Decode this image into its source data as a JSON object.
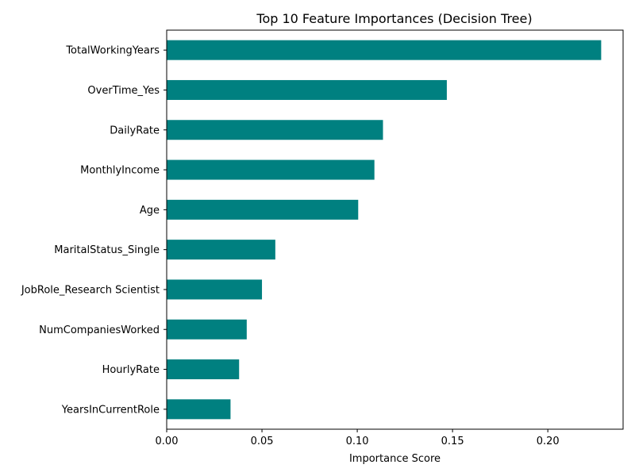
{
  "chart_data": {
    "type": "bar",
    "orientation": "horizontal",
    "title": "Top 10 Feature Importances (Decision Tree)",
    "xlabel": "Importance Score",
    "ylabel": "",
    "xlim": [
      0,
      0.2395
    ],
    "xticks": [
      0.0,
      0.05,
      0.1,
      0.15,
      0.2
    ],
    "xtick_labels": [
      "0.00",
      "0.05",
      "0.10",
      "0.15",
      "0.20"
    ],
    "grid": false,
    "bar_color": "#008080",
    "categories": [
      "TotalWorkingYears",
      "OverTime_Yes",
      "DailyRate",
      "MonthlyIncome",
      "Age",
      "MaritalStatus_Single",
      "JobRole_Research Scientist",
      "NumCompaniesWorked",
      "HourlyRate",
      "YearsInCurrentRole"
    ],
    "values": [
      0.228,
      0.147,
      0.1135,
      0.109,
      0.1005,
      0.057,
      0.05,
      0.042,
      0.038,
      0.0335
    ]
  }
}
